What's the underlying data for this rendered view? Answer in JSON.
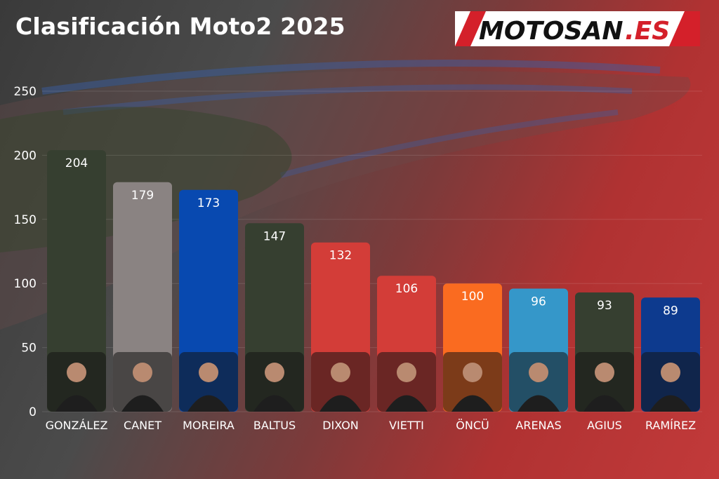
{
  "title": "Clasificación Moto2 2025",
  "logo": {
    "text": "MOTOSAN",
    "suffix": ".ES"
  },
  "chart_data": {
    "type": "bar",
    "title": "Clasificación Moto2 2025",
    "xlabel": "",
    "ylabel": "",
    "ylim": [
      0,
      250
    ],
    "yticks": [
      "0",
      "50",
      "100",
      "150",
      "200",
      "250"
    ],
    "grid": true,
    "categories": [
      "GONZÁLEZ",
      "CANET",
      "MOREIRA",
      "BALTUS",
      "DIXON",
      "VIETTI",
      "ÖNCÜ",
      "ARENAS",
      "AGIUS",
      "RAMÍREZ"
    ],
    "values": [
      204,
      179,
      173,
      147,
      132,
      106,
      100,
      96,
      93,
      89
    ],
    "value_labels": [
      "204",
      "179",
      "173",
      "147",
      "132",
      "106",
      "100",
      "96",
      "93",
      "89"
    ],
    "colors": [
      "#363f30",
      "#8a8382",
      "#0849b0",
      "#363f30",
      "#d33d38",
      "#d33d38",
      "#fa6b20",
      "#3597c9",
      "#363f30",
      "#0d3a8e"
    ]
  }
}
